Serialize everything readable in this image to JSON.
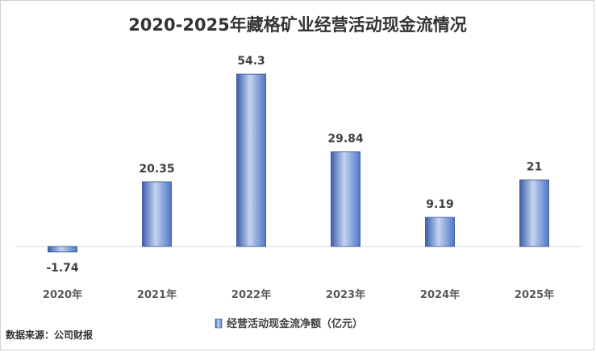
{
  "chart_data": {
    "type": "bar",
    "title": "2020-2025年藏格矿业经营活动现金流情况",
    "categories": [
      "2020年",
      "2021年",
      "2022年",
      "2023年",
      "2024年",
      "2025年"
    ],
    "series": [
      {
        "name": "经营活动现金流净额（亿元）",
        "values": [
          -1.74,
          20.35,
          54.3,
          29.84,
          9.19,
          21
        ]
      }
    ],
    "data_labels": [
      "-1.74",
      "20.35",
      "54.3",
      "29.84",
      "9.19",
      "21"
    ],
    "xlabel": "",
    "ylabel": "",
    "ylim": [
      -5,
      60
    ],
    "grid": false,
    "legend_position": "bottom",
    "colors": {
      "bar": "#4f77c7",
      "bar_highlight": "#c5d3f0",
      "bar_edge": "#2f4f8f",
      "baseline": "#d9d9d9"
    }
  },
  "source_note": "数据来源：公司财报"
}
